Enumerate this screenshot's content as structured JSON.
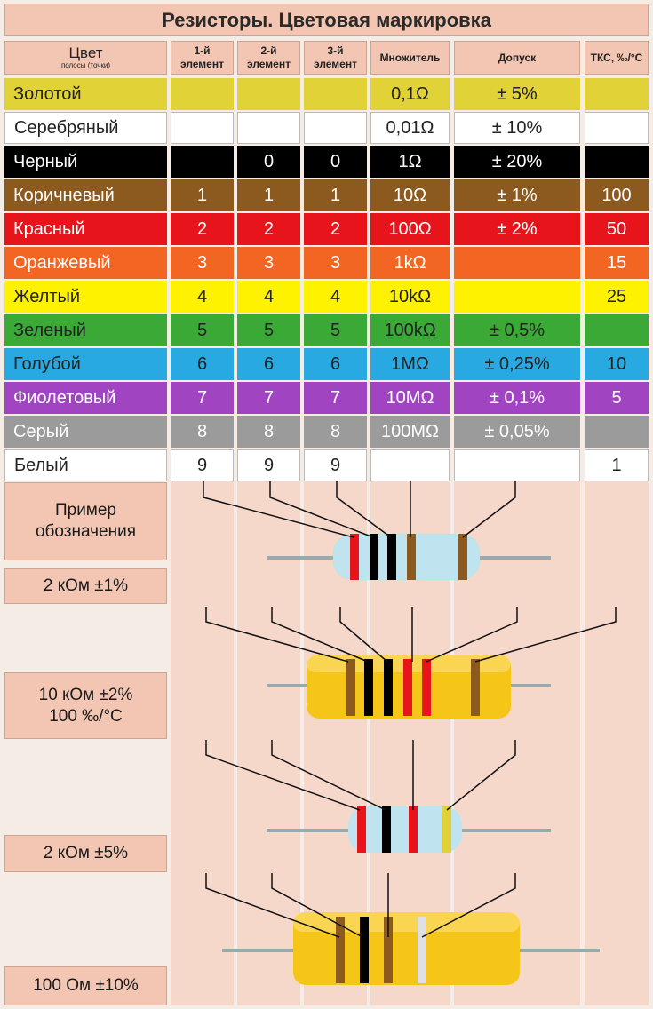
{
  "title": "Резисторы. Цветовая маркировка",
  "headers": {
    "color": "Цвет",
    "color_sub": "полосы (точки)",
    "first": "1-й элемент",
    "second": "2-й элемент",
    "third": "3-й элемент",
    "multiplier": "Множитель",
    "tolerance": "Допуск",
    "tks": "ТКС, ‰/°C"
  },
  "rows": [
    {
      "name": "Золотой",
      "bg": "#e1d238",
      "fg": "#222222",
      "d1": "",
      "d2": "",
      "d3": "",
      "mult": "0,1Ω",
      "tol": "± 5%",
      "tks": ""
    },
    {
      "name": "Серебряный",
      "bg": "#ffffff",
      "fg": "#222222",
      "d1": "",
      "d2": "",
      "d3": "",
      "mult": "0,01Ω",
      "tol": "± 10%",
      "tks": ""
    },
    {
      "name": "Черный",
      "bg": "#000000",
      "fg": "#ffffff",
      "d1": "",
      "d2": "0",
      "d3": "0",
      "mult": "1Ω",
      "tol": "± 20%",
      "tks": ""
    },
    {
      "name": "Коричневый",
      "bg": "#8c5a1f",
      "fg": "#ffffff",
      "d1": "1",
      "d2": "1",
      "d3": "1",
      "mult": "10Ω",
      "tol": "± 1%",
      "tks": "100"
    },
    {
      "name": "Красный",
      "bg": "#e8141c",
      "fg": "#ffffff",
      "d1": "2",
      "d2": "2",
      "d3": "2",
      "mult": "100Ω",
      "tol": "± 2%",
      "tks": "50"
    },
    {
      "name": "Оранжевый",
      "bg": "#f26522",
      "fg": "#ffffff",
      "d1": "3",
      "d2": "3",
      "d3": "3",
      "mult": "1kΩ",
      "tol": "",
      "tks": "15"
    },
    {
      "name": "Желтый",
      "bg": "#fff200",
      "fg": "#222222",
      "d1": "4",
      "d2": "4",
      "d3": "4",
      "mult": "10kΩ",
      "tol": "",
      "tks": "25"
    },
    {
      "name": "Зеленый",
      "bg": "#3aa935",
      "fg": "#222222",
      "d1": "5",
      "d2": "5",
      "d3": "5",
      "mult": "100kΩ",
      "tol": "± 0,5%",
      "tks": ""
    },
    {
      "name": "Голубой",
      "bg": "#29a9e1",
      "fg": "#222222",
      "d1": "6",
      "d2": "6",
      "d3": "6",
      "mult": "1MΩ",
      "tol": "± 0,25%",
      "tks": "10"
    },
    {
      "name": "Фиолетовый",
      "bg": "#a144c2",
      "fg": "#ffffff",
      "d1": "7",
      "d2": "7",
      "d3": "7",
      "mult": "10MΩ",
      "tol": "± 0,1%",
      "tks": "5"
    },
    {
      "name": "Серый",
      "bg": "#9b9b9b",
      "fg": "#ffffff",
      "d1": "8",
      "d2": "8",
      "d3": "8",
      "mult": "100MΩ",
      "tol": "± 0,05%",
      "tks": ""
    },
    {
      "name": "Белый",
      "bg": "#ffffff",
      "fg": "#222222",
      "d1": "9",
      "d2": "9",
      "d3": "9",
      "mult": "",
      "tol": "",
      "tks": "1"
    }
  ],
  "examples": {
    "heading": "Пример обозначения",
    "ex1": "2 кОм ±1%",
    "ex2_line1": "10 кОм ±2%",
    "ex2_line2": "100 ‰/°C",
    "ex3": "2 кОм ±5%",
    "ex4": "100 Ом ±10%"
  },
  "resistors": [
    {
      "body": "#bfe3ef",
      "bands": [
        "#e8141c",
        "#000000",
        "#000000",
        "#8c5a1f",
        "#8c5a1f"
      ]
    },
    {
      "body": "#f5c518",
      "bands": [
        "#8c5a1f",
        "#000000",
        "#000000",
        "#e8141c",
        "#e8141c",
        "#8c5a1f"
      ]
    },
    {
      "body": "#bfe3ef",
      "bands": [
        "#e8141c",
        "#000000",
        "#e8141c",
        "#e1d238"
      ]
    },
    {
      "body": "#f5c518",
      "bands": [
        "#8c5a1f",
        "#000000",
        "#8c5a1f",
        "#e0e0e0"
      ]
    }
  ]
}
